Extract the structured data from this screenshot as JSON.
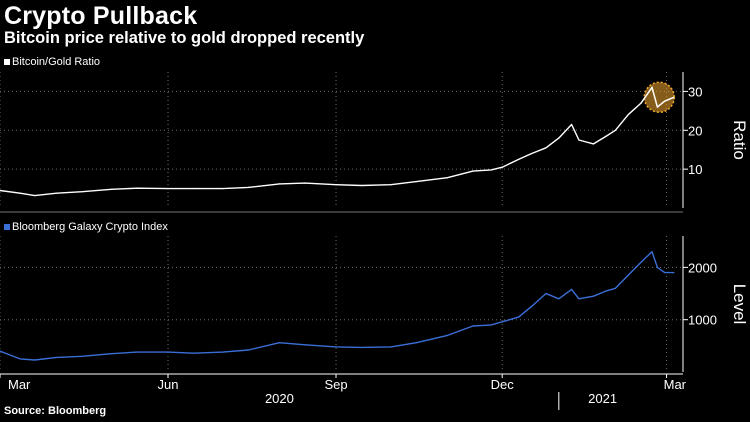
{
  "header": {
    "title": "Crypto Pullback",
    "subtitle": "Bitcoin price relative to gold dropped recently"
  },
  "source": "Source: Bloomberg",
  "colors": {
    "background": "#000000",
    "ratio_line": "#ffffff",
    "index_line": "#3b6fd8",
    "highlight": "#f2a830",
    "grid": "#6a6a6a"
  },
  "chart_data": [
    {
      "type": "line",
      "panel": "top",
      "ylabel": "Ratio",
      "ylim": [
        0,
        35
      ],
      "yticks": [
        10,
        20,
        30
      ],
      "legend": "top-left",
      "grid": true,
      "series": [
        {
          "name": "Bitcoin/Gold Ratio",
          "x": [
            "2020-03-01",
            "2020-03-12",
            "2020-03-20",
            "2020-04-01",
            "2020-04-15",
            "2020-05-01",
            "2020-05-15",
            "2020-06-01",
            "2020-06-15",
            "2020-07-01",
            "2020-07-15",
            "2020-08-01",
            "2020-08-15",
            "2020-09-01",
            "2020-09-15",
            "2020-10-01",
            "2020-10-15",
            "2020-11-01",
            "2020-11-15",
            "2020-11-25",
            "2020-12-01",
            "2020-12-10",
            "2020-12-17",
            "2020-12-25",
            "2021-01-01",
            "2021-01-08",
            "2021-01-12",
            "2021-01-20",
            "2021-01-27",
            "2021-02-01",
            "2021-02-08",
            "2021-02-15",
            "2021-02-21",
            "2021-02-24",
            "2021-02-28",
            "2021-03-05"
          ],
          "y": [
            4.5,
            3.8,
            3.2,
            3.8,
            4.2,
            4.8,
            5.1,
            5.0,
            5.0,
            5.0,
            5.3,
            6.2,
            6.4,
            6.0,
            5.8,
            6.0,
            6.8,
            7.8,
            9.5,
            9.8,
            10.5,
            12.5,
            14.0,
            15.5,
            18.0,
            21.5,
            17.5,
            16.5,
            18.5,
            20.0,
            24.0,
            27.0,
            31.0,
            26.0,
            27.5,
            28.5
          ]
        }
      ],
      "annotations": [
        "highlight circle around recent peak"
      ]
    },
    {
      "type": "line",
      "panel": "bottom",
      "ylabel": "Level",
      "ylim": [
        0,
        2600
      ],
      "yticks": [
        1000,
        2000
      ],
      "legend": "top-left",
      "grid": true,
      "series": [
        {
          "name": "Bloomberg Galaxy Crypto Index",
          "x": [
            "2020-03-01",
            "2020-03-12",
            "2020-03-20",
            "2020-04-01",
            "2020-04-15",
            "2020-05-01",
            "2020-05-15",
            "2020-06-01",
            "2020-06-15",
            "2020-07-01",
            "2020-07-15",
            "2020-08-01",
            "2020-08-15",
            "2020-09-01",
            "2020-09-15",
            "2020-10-01",
            "2020-10-15",
            "2020-11-01",
            "2020-11-15",
            "2020-11-25",
            "2020-12-01",
            "2020-12-10",
            "2020-12-17",
            "2020-12-25",
            "2021-01-01",
            "2021-01-08",
            "2021-01-12",
            "2021-01-20",
            "2021-01-27",
            "2021-02-01",
            "2021-02-08",
            "2021-02-15",
            "2021-02-21",
            "2021-02-24",
            "2021-02-28",
            "2021-03-05"
          ],
          "y": [
            400,
            250,
            230,
            280,
            300,
            350,
            380,
            380,
            360,
            380,
            420,
            560,
            520,
            480,
            470,
            480,
            560,
            700,
            880,
            900,
            960,
            1050,
            1250,
            1500,
            1400,
            1580,
            1400,
            1450,
            1550,
            1600,
            1850,
            2100,
            2300,
            2000,
            1900,
            1900
          ]
        }
      ]
    }
  ],
  "axis": {
    "x_start": "2020-03-01",
    "x_end": "2021-03-10",
    "month_labels": [
      {
        "date": "2020-03-01",
        "label": "Mar"
      },
      {
        "date": "2020-06-01",
        "label": "Jun"
      },
      {
        "date": "2020-09-01",
        "label": "Sep"
      },
      {
        "date": "2020-12-01",
        "label": "Dec"
      },
      {
        "date": "2021-03-01",
        "label": "Mar"
      }
    ],
    "year_labels": [
      {
        "date": "2020-08-01",
        "label": "2020"
      },
      {
        "date": "2021-01-25",
        "label": "2021"
      }
    ],
    "year_divider_date": "2021-01-01"
  }
}
